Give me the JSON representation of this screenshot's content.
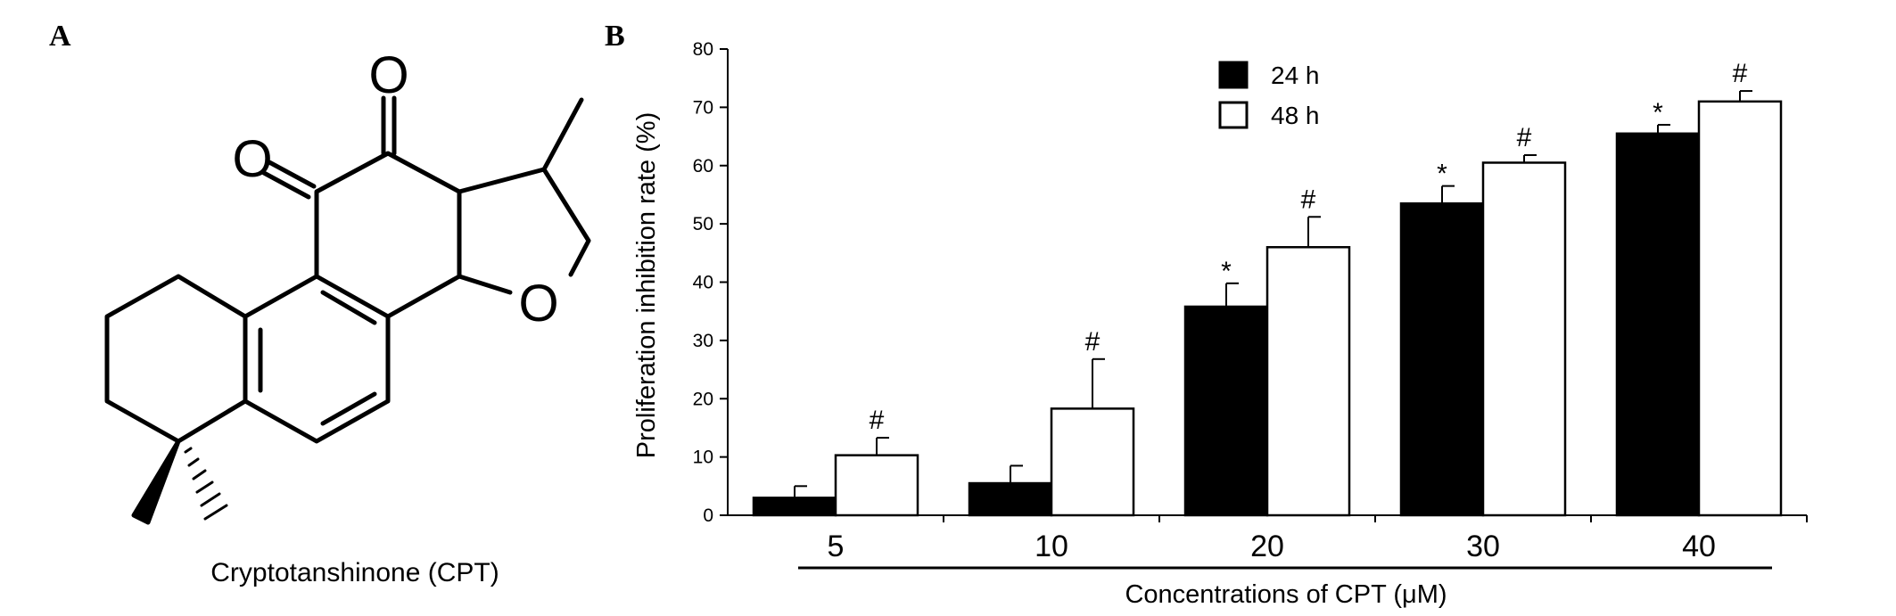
{
  "panels": {
    "a_label": "A",
    "b_label": "B"
  },
  "structure": {
    "name": "Cryptotanshinone (CPT)",
    "atoms": [
      "O",
      "O",
      "O"
    ]
  },
  "chart_data": {
    "type": "bar",
    "categories": [
      "5",
      "10",
      "20",
      "30",
      "40"
    ],
    "xlabel": "Concentrations of CPT (μM)",
    "ylabel": "Proliferation inhibition rate (%)",
    "ylim": [
      0,
      80
    ],
    "yticks": [
      0,
      10,
      20,
      30,
      40,
      50,
      60,
      70,
      80
    ],
    "legend_position": "top-center",
    "grid": false,
    "series": [
      {
        "name": "24 h",
        "fill": "#000000",
        "values": [
          3,
          5.5,
          35.8,
          53.5,
          65.5
        ],
        "errors": [
          2,
          3,
          4,
          3,
          1.5
        ],
        "markers": [
          "",
          "",
          "*",
          "*",
          "*"
        ]
      },
      {
        "name": "48 h",
        "fill": "#ffffff",
        "values": [
          10.3,
          18.3,
          46,
          60.5,
          71
        ],
        "errors": [
          3,
          8.5,
          5.2,
          1.3,
          1.8
        ],
        "markers": [
          "#",
          "#",
          "#",
          "#",
          "#"
        ]
      }
    ]
  }
}
